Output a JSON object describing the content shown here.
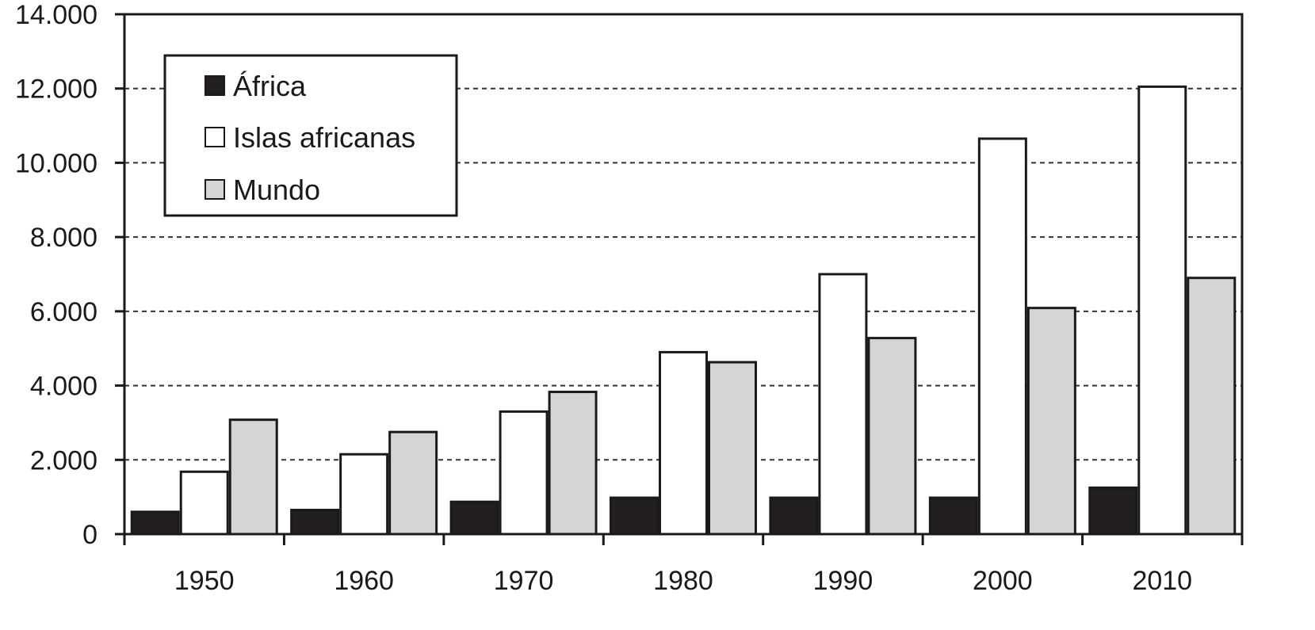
{
  "chart_data": {
    "type": "bar",
    "categories": [
      "1950",
      "1960",
      "1970",
      "1980",
      "1990",
      "2000",
      "2010"
    ],
    "series": [
      {
        "name": "África",
        "color": "#231f20",
        "values": [
          600,
          650,
          870,
          980,
          980,
          980,
          1250
        ]
      },
      {
        "name": "Islas africanas",
        "color": "#ffffff",
        "values": [
          1680,
          2150,
          3300,
          4900,
          7000,
          10650,
          12050
        ]
      },
      {
        "name": "Mundo",
        "color": "#d4d5d7",
        "values": [
          3080,
          2750,
          3830,
          4630,
          5280,
          6090,
          6900
        ]
      }
    ],
    "title": "",
    "xlabel": "",
    "ylabel": "",
    "ylim": [
      0,
      14000
    ],
    "y_ticks": [
      "0",
      "2.000",
      "4.000",
      "6.000",
      "8.000",
      "10.000",
      "12.000",
      "14.000"
    ],
    "grid": "horizontal dashed",
    "legend_position": "top-left"
  }
}
